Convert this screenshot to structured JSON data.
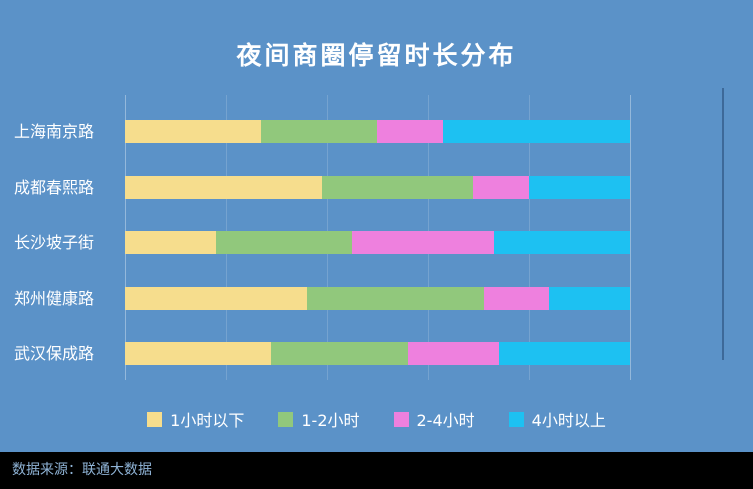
{
  "title": "夜间商圈停留时长分布",
  "chart_data": {
    "type": "bar",
    "orientation": "horizontal",
    "stacked": true,
    "title": "夜间商圈停留时长分布",
    "categories": [
      "上海南京路",
      "成都春熙路",
      "长沙坡子街",
      "郑州健康路",
      "武汉保成路"
    ],
    "series": [
      {
        "name": "1小时以下",
        "color": "#F6DD8D",
        "values": [
          27,
          39,
          18,
          36,
          29
        ]
      },
      {
        "name": "1-2小时",
        "color": "#91C87C",
        "values": [
          23,
          30,
          27,
          35,
          27
        ]
      },
      {
        "name": "2-4小时",
        "color": "#EE80DE",
        "values": [
          13,
          11,
          28,
          13,
          18
        ]
      },
      {
        "name": "4小时以上",
        "color": "#1DC1F2",
        "values": [
          37,
          20,
          27,
          16,
          26
        ]
      }
    ],
    "xlim": [
      0,
      100
    ],
    "grid": true,
    "legend_position": "bottom"
  },
  "footer": {
    "source": "数据来源：联通大数据"
  },
  "colors": {
    "background": "#5B92C8",
    "title": "#FFFFFF",
    "footer_bg": "#000000",
    "footer_text": "#8FB3D6"
  }
}
